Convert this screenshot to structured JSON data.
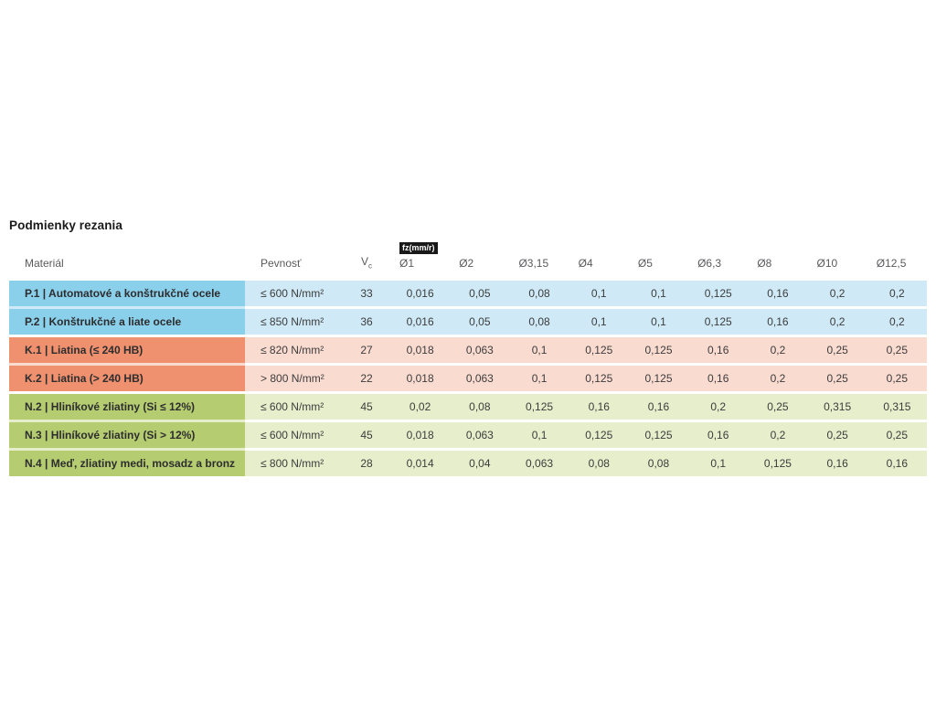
{
  "page": {
    "title": "Podmienky rezania"
  },
  "table": {
    "headers": {
      "material": "Materiál",
      "pevnost": "Pevnosť",
      "vc_main": "V",
      "vc_sub": "c",
      "fz_badge": "fz(mm/r)",
      "diameters": [
        "Ø1",
        "Ø2",
        "Ø3,15",
        "Ø4",
        "Ø5",
        "Ø6,3",
        "Ø8",
        "Ø10",
        "Ø12,5"
      ]
    },
    "rows": [
      {
        "material": "P.1 | Automatové a konštrukčné ocele",
        "pevnost": "≤ 600 N/mm²",
        "vc": "33",
        "values": [
          "0,016",
          "0,05",
          "0,08",
          "0,1",
          "0,1",
          "0,125",
          "0,16",
          "0,2",
          "0,2"
        ]
      },
      {
        "material": "P.2 | Konštrukčné a liate ocele",
        "pevnost": "≤ 850 N/mm²",
        "vc": "36",
        "values": [
          "0,016",
          "0,05",
          "0,08",
          "0,1",
          "0,1",
          "0,125",
          "0,16",
          "0,2",
          "0,2"
        ]
      },
      {
        "material": "K.1 | Liatina (≤ 240 HB)",
        "pevnost": "≤ 820 N/mm²",
        "vc": "27",
        "values": [
          "0,018",
          "0,063",
          "0,1",
          "0,125",
          "0,125",
          "0,16",
          "0,2",
          "0,25",
          "0,25"
        ]
      },
      {
        "material": "K.2 | Liatina (> 240 HB)",
        "pevnost": "> 800 N/mm²",
        "vc": "22",
        "values": [
          "0,018",
          "0,063",
          "0,1",
          "0,125",
          "0,125",
          "0,16",
          "0,2",
          "0,25",
          "0,25"
        ]
      },
      {
        "material": "N.2 | Hliníkové zliatiny (Si ≤ 12%)",
        "pevnost": "≤ 600 N/mm²",
        "vc": "45",
        "values": [
          "0,02",
          "0,08",
          "0,125",
          "0,16",
          "0,16",
          "0,2",
          "0,25",
          "0,315",
          "0,315"
        ]
      },
      {
        "material": "N.3 | Hliníkové zliatiny (Si > 12%)",
        "pevnost": "≤ 600 N/mm²",
        "vc": "45",
        "values": [
          "0,018",
          "0,063",
          "0,1",
          "0,125",
          "0,125",
          "0,16",
          "0,2",
          "0,25",
          "0,25"
        ]
      },
      {
        "material": "N.4 | Meď, zliatiny medi, mosadz a bronz",
        "pevnost": "≤ 800 N/mm²",
        "vc": "28",
        "values": [
          "0,014",
          "0,04",
          "0,063",
          "0,08",
          "0,08",
          "0,1",
          "0,125",
          "0,16",
          "0,16"
        ]
      }
    ],
    "colors": {
      "group_p": {
        "material": "#8bd0ea",
        "row": "#cfeaf6"
      },
      "group_k": {
        "material": "#ef916e",
        "row": "#fadbd0"
      },
      "group_n": {
        "material": "#b5cc70",
        "row": "#e6eecb"
      },
      "badge_bg": "#191919",
      "badge_text": "#ffffff"
    }
  }
}
